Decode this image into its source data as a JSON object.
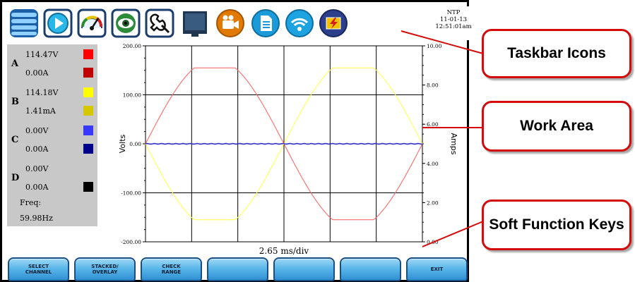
{
  "taskbar": {
    "icons": [
      "menu-icon",
      "play-icon",
      "meter-icon",
      "eye-icon",
      "wrench-icon",
      "monitor-icon",
      "camera-icon",
      "document-icon",
      "wireless-icon",
      "alarm-icon"
    ],
    "ntp": {
      "label": "NTP",
      "date": "11-01-13",
      "time": "12:51:01am"
    }
  },
  "readout": {
    "channels": [
      {
        "letter": "A",
        "volts": "114.47V",
        "amps": "0.00A",
        "volt_color": "#ff0000",
        "amp_color": "#c00000"
      },
      {
        "letter": "B",
        "volts": "114.18V",
        "amps": "1.41mA",
        "volt_color": "#ffff00",
        "amp_color": "#d4c800"
      },
      {
        "letter": "C",
        "volts": "0.00V",
        "amps": "0.00A",
        "volt_color": "#3838ff",
        "amp_color": "#00008b"
      },
      {
        "letter": "D",
        "volts": "0.00V",
        "amps": "0.00A",
        "volt_color": "",
        "amp_color": "#000000"
      }
    ],
    "freq_label": "Freq:",
    "freq_value": "59.98Hz"
  },
  "chart_data": {
    "type": "line",
    "ylabel": "Volts",
    "y2label": "Amps",
    "xlabel": "2.65 ms/div",
    "ylim": [
      -200,
      200
    ],
    "y2lim": [
      0,
      10
    ],
    "yticks": [
      "200.00",
      "100.00",
      "0.00",
      "-100.00",
      "-200.00"
    ],
    "y2ticks": [
      "10.00",
      "8.00",
      "6.00",
      "4.00",
      "2.00",
      "0.00"
    ],
    "x_divisions": 6,
    "grid": true,
    "series": [
      {
        "channel": "A",
        "kind": "voltage",
        "color": "#ff6a6a",
        "amplitude": 155,
        "phase_deg": 0,
        "cycles": 1.0
      },
      {
        "channel": "B",
        "kind": "voltage",
        "color": "#ffff55",
        "amplitude": 155,
        "phase_deg": 180,
        "cycles": 1.0
      },
      {
        "channel": "C",
        "kind": "voltage",
        "color": "#3333cc",
        "amplitude": 0,
        "phase_deg": 0,
        "cycles": 1.0
      }
    ]
  },
  "softkeys": [
    "SELECT\nCHANNEL",
    "STACKED/\nOVERLAY",
    "CHECK\nRANGE",
    "",
    "",
    "",
    "EXIT"
  ],
  "callouts": {
    "taskbar": "Taskbar Icons",
    "work_area": "Work Area",
    "soft_keys": "Soft Function Keys"
  }
}
